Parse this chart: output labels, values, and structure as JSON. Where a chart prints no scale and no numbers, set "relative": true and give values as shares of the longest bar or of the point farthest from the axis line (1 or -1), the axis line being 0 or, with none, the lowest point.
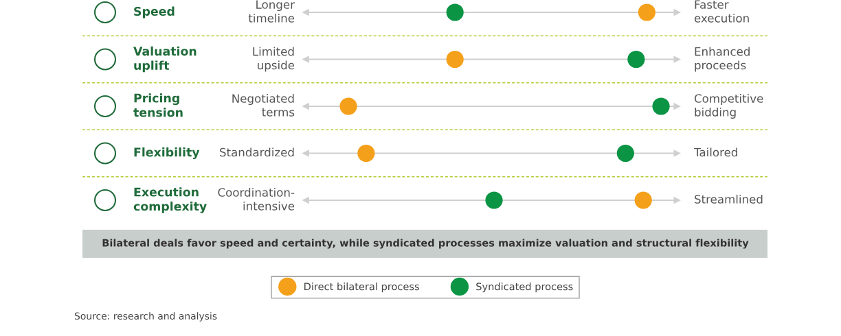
{
  "chart_data": {
    "type": "scatter",
    "orientation": "horizontal",
    "relative": true,
    "categories": [
      "Speed",
      "Valuation\nuplift",
      "Pricing\ntension",
      "Flexibility",
      "Execution\ncomplexity"
    ],
    "series": [
      {
        "name": "Direct bilateral process",
        "color": "#f5a01a",
        "values": [
          0.96,
          0.42,
          0.12,
          0.17,
          0.95
        ]
      },
      {
        "name": "Syndicated process",
        "color": "#0b9444",
        "values": [
          0.42,
          0.93,
          1.0,
          0.9,
          0.53
        ]
      }
    ],
    "annotations": [
      "Longer\ntimeline",
      "Faster\nexecution",
      "Limited\nupside",
      "Enhanced\nproceeds",
      "Negotiated\nterms",
      "Competitive\nbidding",
      "Standardized",
      "Tailored",
      "Coordination-\nintensive",
      "Streamlined",
      "Bilateral deals favor speed and certainty, while syndicated processes maximize valuation and structural flexibility",
      "Source: research and analysis"
    ],
    "marker": "circle",
    "grid": "y",
    "legend": "bottom"
  }
}
